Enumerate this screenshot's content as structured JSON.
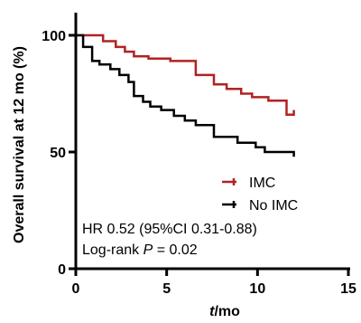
{
  "chart_data": {
    "type": "line",
    "step": true,
    "xlabel": {
      "italic": "t",
      "rest": "/mo"
    },
    "ylabel": "Overall survival at 12 mo (%)",
    "xlim": [
      0,
      15
    ],
    "ylim": [
      0,
      100
    ],
    "xticks": [
      0,
      5,
      10,
      15
    ],
    "yticks": [
      0,
      50,
      100
    ],
    "legend_position": "center-right",
    "grid": false,
    "series": [
      {
        "name": "IMC",
        "color": "#b22222",
        "points": [
          [
            0,
            100
          ],
          [
            1.5,
            100
          ],
          [
            1.5,
            97.5
          ],
          [
            2.2,
            97.5
          ],
          [
            2.2,
            95
          ],
          [
            2.7,
            95
          ],
          [
            2.7,
            93
          ],
          [
            3.2,
            93
          ],
          [
            3.2,
            91
          ],
          [
            4.0,
            91
          ],
          [
            4.0,
            90
          ],
          [
            5.2,
            90
          ],
          [
            5.2,
            89
          ],
          [
            6.6,
            89
          ],
          [
            6.6,
            83
          ],
          [
            7.6,
            83
          ],
          [
            7.6,
            79
          ],
          [
            8.3,
            79
          ],
          [
            8.3,
            77
          ],
          [
            9.1,
            77
          ],
          [
            9.1,
            75
          ],
          [
            9.7,
            75
          ],
          [
            9.7,
            73.5
          ],
          [
            10.6,
            73.5
          ],
          [
            10.6,
            72
          ],
          [
            11.6,
            72
          ],
          [
            11.6,
            66
          ],
          [
            12,
            66
          ],
          [
            12,
            68
          ]
        ]
      },
      {
        "name": "No IMC",
        "color": "#000000",
        "points": [
          [
            0,
            100
          ],
          [
            0.4,
            100
          ],
          [
            0.4,
            95
          ],
          [
            0.9,
            95
          ],
          [
            0.9,
            89
          ],
          [
            1.3,
            89
          ],
          [
            1.3,
            87.5
          ],
          [
            1.9,
            87.5
          ],
          [
            1.9,
            85.5
          ],
          [
            2.4,
            85.5
          ],
          [
            2.4,
            83
          ],
          [
            2.9,
            83
          ],
          [
            2.9,
            80
          ],
          [
            3.2,
            80
          ],
          [
            3.2,
            74
          ],
          [
            3.7,
            74
          ],
          [
            3.7,
            71.5
          ],
          [
            4.1,
            71.5
          ],
          [
            4.1,
            69.5
          ],
          [
            4.7,
            69.5
          ],
          [
            4.7,
            68
          ],
          [
            5.4,
            68
          ],
          [
            5.4,
            65.5
          ],
          [
            6.0,
            65.5
          ],
          [
            6.0,
            63.5
          ],
          [
            6.6,
            63.5
          ],
          [
            6.6,
            61.5
          ],
          [
            7.6,
            61.5
          ],
          [
            7.6,
            56.5
          ],
          [
            8.9,
            56.5
          ],
          [
            8.9,
            54
          ],
          [
            9.9,
            54
          ],
          [
            9.9,
            52
          ],
          [
            10.4,
            52
          ],
          [
            10.4,
            50
          ],
          [
            12,
            50
          ],
          [
            12,
            48
          ]
        ]
      }
    ],
    "annotations": {
      "hr": "HR 0.52 (95%CI 0.31-0.88)",
      "logrank": {
        "prefix": "Log-rank ",
        "italic": "P",
        "suffix": " = 0.02"
      }
    }
  }
}
